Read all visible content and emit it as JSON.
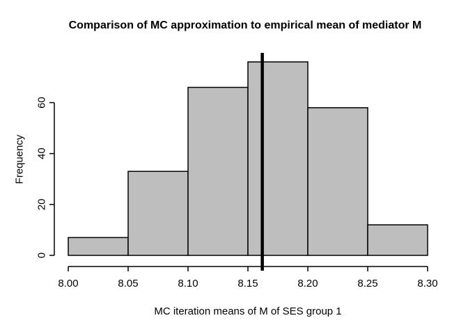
{
  "chart_data": {
    "type": "bar",
    "subtype": "histogram",
    "title": "Comparison of MC approximation to empirical mean of mediator M",
    "xlabel": "MC iteration means of M of SES group 1",
    "ylabel": "Frequency",
    "bin_edges": [
      8.0,
      8.05,
      8.1,
      8.15,
      8.2,
      8.25,
      8.3
    ],
    "counts": [
      7,
      33,
      66,
      76,
      58,
      12
    ],
    "x_tick_labels": [
      "8.00",
      "8.05",
      "8.10",
      "8.15",
      "8.20",
      "8.25",
      "8.30"
    ],
    "x_tick_values": [
      8.0,
      8.05,
      8.1,
      8.15,
      8.2,
      8.25,
      8.3
    ],
    "y_ticks": [
      0,
      20,
      40,
      60
    ],
    "xlim": [
      8.0,
      8.3
    ],
    "ylim": [
      0,
      76
    ],
    "vline_x": 8.162,
    "grid": false,
    "legend": null,
    "colors": {
      "bar_fill": "#bebebe",
      "bar_stroke": "#000000",
      "axis": "#000000",
      "text": "#000000",
      "vline": "#000000",
      "background": "#ffffff"
    }
  }
}
